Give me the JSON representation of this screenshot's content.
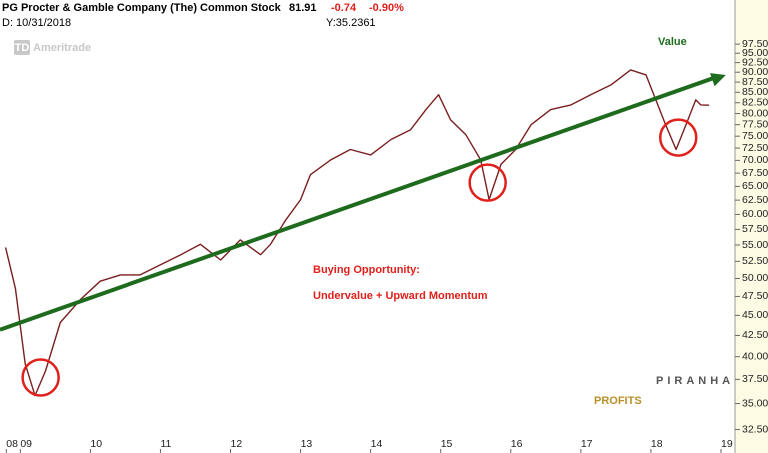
{
  "header": {
    "title": "PG Procter & Gamble Company (The) Common Stock",
    "last": "81.91",
    "change": "-0.74",
    "change_pct": "-0.90%",
    "date": "D: 10/31/2018",
    "cursor": "Y:35.2361",
    "watermark": "Ameritrade",
    "watermark_badge": "TD"
  },
  "chart_data": {
    "type": "line",
    "log_scale": true,
    "grid": false,
    "color": "#7a1f1f",
    "x": [
      2008.79,
      2008.93,
      2009.07,
      2009.21,
      2009.36,
      2009.57,
      2009.86,
      2010.14,
      2010.43,
      2010.71,
      2011.0,
      2011.29,
      2011.57,
      2011.86,
      2012.14,
      2012.43,
      2012.57,
      2012.79,
      2013.0,
      2013.14,
      2013.43,
      2013.71,
      2014.0,
      2014.29,
      2014.57,
      2014.79,
      2014.97,
      2015.14,
      2015.36,
      2015.57,
      2015.69,
      2015.86,
      2016.07,
      2016.29,
      2016.57,
      2016.86,
      2017.14,
      2017.43,
      2017.71,
      2017.93,
      2018.07,
      2018.21,
      2018.36,
      2018.5,
      2018.64,
      2018.71,
      2018.83
    ],
    "series": [
      {
        "name": "PG",
        "color": "#7a1f1f",
        "values": [
          54.6,
          48.6,
          39.2,
          35.8,
          38.4,
          44.1,
          47.1,
          49.6,
          50.5,
          50.5,
          52.0,
          53.5,
          55.1,
          52.7,
          55.8,
          53.5,
          55.1,
          59.1,
          62.6,
          67.2,
          70.1,
          72.2,
          71.1,
          74.3,
          76.4,
          80.9,
          84.4,
          78.6,
          75.3,
          70.1,
          62.6,
          69.2,
          72.2,
          77.5,
          80.9,
          82.0,
          84.4,
          86.8,
          90.6,
          89.3,
          83.2,
          77.5,
          72.2,
          77.5,
          83.2,
          82.0,
          81.91
        ]
      }
    ],
    "xlim": [
      2008.71,
      2019.2
    ],
    "xticks": [
      {
        "value": 2008.8,
        "label": "08"
      },
      {
        "value": 2009,
        "label": "09"
      },
      {
        "value": 2010,
        "label": "10"
      },
      {
        "value": 2011,
        "label": "11"
      },
      {
        "value": 2012,
        "label": "12"
      },
      {
        "value": 2013,
        "label": "13"
      },
      {
        "value": 2014,
        "label": "14"
      },
      {
        "value": 2015,
        "label": "15"
      },
      {
        "value": 2016,
        "label": "16"
      },
      {
        "value": 2017,
        "label": "17"
      },
      {
        "value": 2018,
        "label": "18"
      },
      {
        "value": 2019,
        "label": "19"
      }
    ],
    "ylim": [
      30.4,
      109
    ],
    "yticks": [
      {
        "value": 32.5,
        "label": "32.50"
      },
      {
        "value": 35,
        "label": "35.00"
      },
      {
        "value": 37.5,
        "label": "37.50"
      },
      {
        "value": 40,
        "label": "40.00"
      },
      {
        "value": 42.5,
        "label": "42.50"
      },
      {
        "value": 45,
        "label": "45.00"
      },
      {
        "value": 47.5,
        "label": "47.50"
      },
      {
        "value": 50,
        "label": "50.00"
      },
      {
        "value": 52.5,
        "label": "52.50"
      },
      {
        "value": 55,
        "label": "55.00"
      },
      {
        "value": 57.5,
        "label": "57.50"
      },
      {
        "value": 60,
        "label": "60.00"
      },
      {
        "value": 62.5,
        "label": "62.50"
      },
      {
        "value": 65,
        "label": "65.00"
      },
      {
        "value": 67.5,
        "label": "67.50"
      },
      {
        "value": 70,
        "label": "70.00"
      },
      {
        "value": 72.5,
        "label": "72.50"
      },
      {
        "value": 75,
        "label": "75.00"
      },
      {
        "value": 77.5,
        "label": "77.50"
      },
      {
        "value": 80,
        "label": "80.00"
      },
      {
        "value": 82.5,
        "label": "82.50"
      },
      {
        "value": 85,
        "label": "85.00"
      },
      {
        "value": 87.5,
        "label": "87.50"
      },
      {
        "value": 90,
        "label": "90.00"
      },
      {
        "value": 92.5,
        "label": "92.50"
      },
      {
        "value": 95,
        "label": "95.00"
      },
      {
        "value": 97.5,
        "label": "97.50"
      }
    ],
    "trend_line": {
      "label": "Value",
      "color": "#1e6b1e",
      "x": [
        2008.71,
        2019.07
      ],
      "y": [
        43.2,
        89.3
      ]
    },
    "highlights": {
      "color": "#e0201b",
      "x": [
        2009.29,
        2015.67,
        2018.39
      ],
      "y": [
        37.7,
        65.7,
        74.7
      ]
    },
    "annotations": [
      "Buying Opportunity:",
      "Undervalue + Upward Momentum"
    ],
    "logo": {
      "top": "PIRANHA",
      "bottom": "PROFITS"
    }
  }
}
